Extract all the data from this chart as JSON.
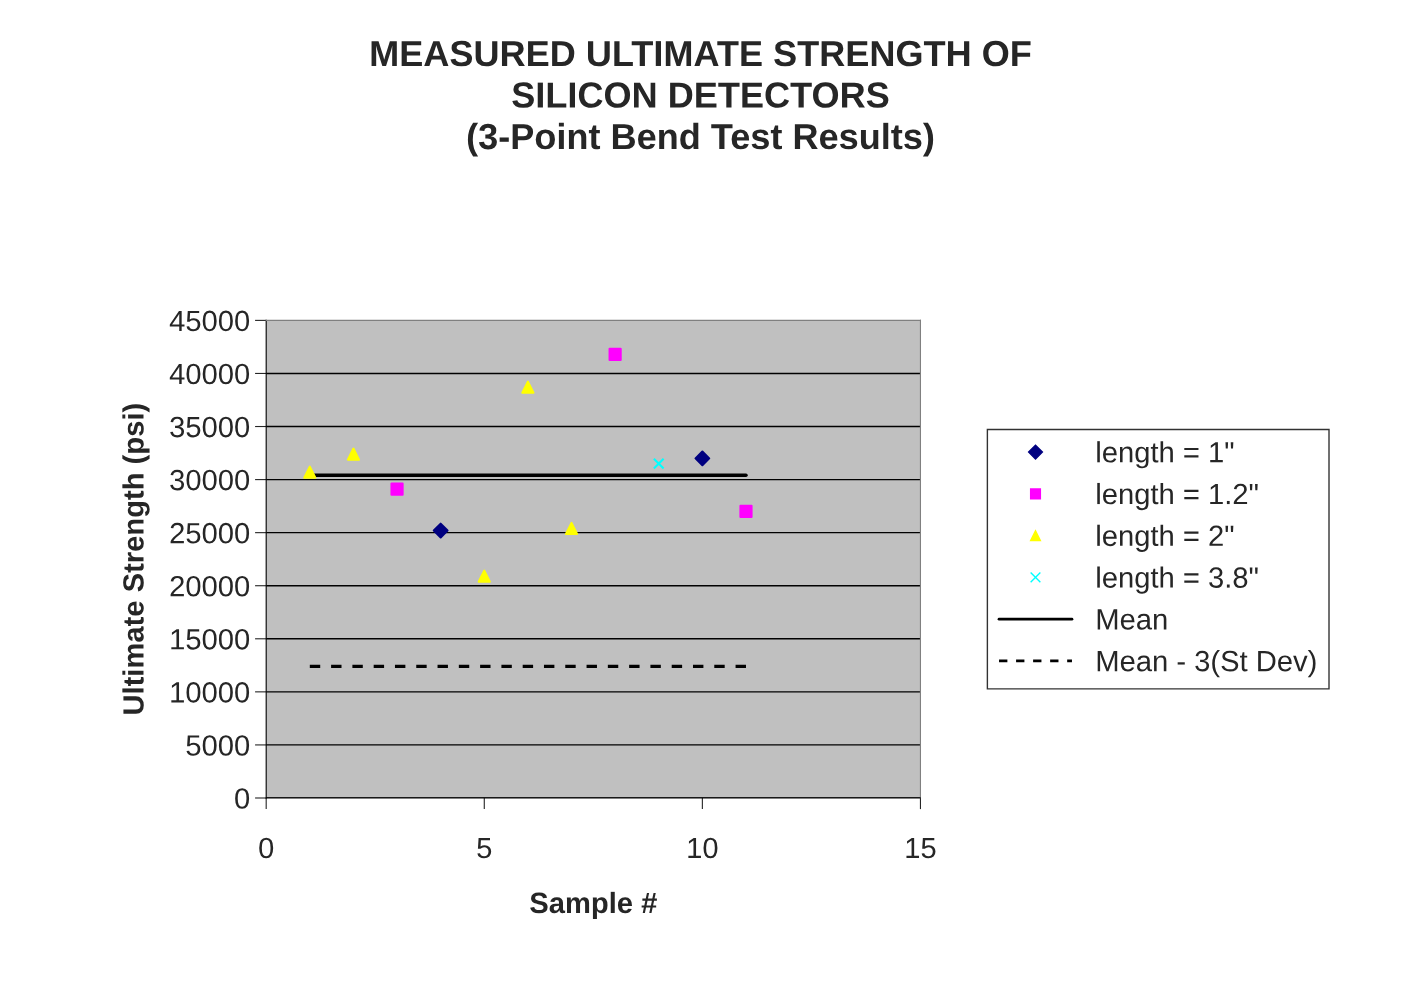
{
  "chart_data": {
    "type": "scatter",
    "title": "MEASURED ULTIMATE STRENGTH OF\nSILICON DETECTORS\n(3-Point Bend Test Results)",
    "xlabel": "Sample #",
    "ylabel": "Ultimate Strength (psi)",
    "xlim": [
      0,
      15
    ],
    "xticks": [
      0,
      5,
      10,
      15
    ],
    "ylim": [
      0,
      45000
    ],
    "yticks": [
      0,
      5000,
      10000,
      15000,
      20000,
      25000,
      30000,
      35000,
      40000,
      45000
    ],
    "grid": "y",
    "legend": "right",
    "series": [
      {
        "name": "length = 1\"",
        "color": "#000080",
        "marker": "diamond",
        "x": [
          4,
          10
        ],
        "values": [
          25200,
          32000
        ]
      },
      {
        "name": "length = 1.2\"",
        "color": "#ff00ff",
        "marker": "square",
        "x": [
          3,
          8,
          11
        ],
        "values": [
          29100,
          41800,
          27000
        ]
      },
      {
        "name": "length = 2\"",
        "color": "#ffff00",
        "marker": "triangle",
        "x": [
          1,
          2,
          5,
          6,
          7
        ],
        "values": [
          30700,
          32400,
          20900,
          38700,
          25400
        ]
      },
      {
        "name": "length = 3.8\"",
        "color": "#00ffff",
        "marker": "cross",
        "x": [
          9
        ],
        "values": [
          31500
        ]
      },
      {
        "name": "Mean",
        "type": "line",
        "color": "#000000",
        "line_style": "solid",
        "marker": "none",
        "x": [
          1,
          11
        ],
        "values": [
          30400,
          30400
        ]
      },
      {
        "name": "Mean - 3(St Dev)",
        "type": "line",
        "color": "#000000",
        "line_style": "dashed",
        "marker": "none",
        "x": [
          1,
          11
        ],
        "values": [
          12400,
          12400
        ]
      }
    ]
  }
}
